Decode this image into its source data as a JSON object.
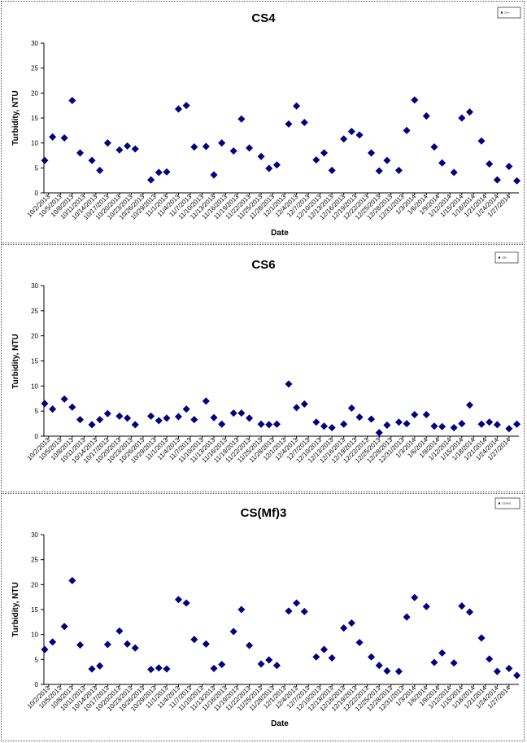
{
  "x_dates": [
    "10/2/2013",
    "10/5/2013",
    "10/8/2013",
    "10/11/2013",
    "10/14/2013",
    "10/17/2013",
    "10/20/2013",
    "10/23/2013",
    "10/26/2013",
    "10/29/2013",
    "11/1/2013",
    "11/4/2013",
    "11/7/2013",
    "11/10/2013",
    "11/13/2013",
    "11/16/2013",
    "11/19/2013",
    "11/22/2013",
    "11/25/2013",
    "11/28/2013",
    "12/1/2013",
    "12/4/2013",
    "12/7/2013",
    "12/10/2013",
    "12/13/2013",
    "12/16/2013",
    "12/19/2013",
    "12/22/2013",
    "12/25/2013",
    "12/28/2013",
    "12/31/2013",
    "1/3/2014",
    "1/6/2014",
    "1/9/2014",
    "1/12/2014",
    "1/15/2014",
    "1/18/2014",
    "1/21/2014",
    "1/24/2014",
    "1/27/2014"
  ],
  "chart_data": [
    {
      "type": "scatter",
      "title": "CS4",
      "xlabel": "Date",
      "ylabel": "Turbidity, NTU",
      "ylim": [
        0,
        30
      ],
      "yticks": [
        0,
        5,
        10,
        15,
        20,
        25,
        30
      ],
      "grid": false,
      "legend": {
        "placement": "top-right",
        "entries": [
          "CS4"
        ]
      },
      "marker_color": "#000080",
      "series": [
        {
          "name": "CS4",
          "points": [
            [
              "10/1/2013",
              6.5
            ],
            [
              "10/3/2013",
              11.2
            ],
            [
              "10/6/2013",
              11.0
            ],
            [
              "10/8/2013",
              18.5
            ],
            [
              "10/10/2013",
              8.0
            ],
            [
              "10/13/2013",
              6.5
            ],
            [
              "10/15/2013",
              4.5
            ],
            [
              "10/17/2013",
              10.0
            ],
            [
              "10/20/2013",
              8.6
            ],
            [
              "10/22/2013",
              9.4
            ],
            [
              "10/24/2013",
              8.8
            ],
            [
              "10/28/2013",
              2.6
            ],
            [
              "10/30/2013",
              4.1
            ],
            [
              "11/1/2013",
              4.2
            ],
            [
              "11/4/2013",
              16.8
            ],
            [
              "11/6/2013",
              17.5
            ],
            [
              "11/8/2013",
              9.2
            ],
            [
              "11/11/2013",
              9.3
            ],
            [
              "11/13/2013",
              3.6
            ],
            [
              "11/15/2013",
              10.0
            ],
            [
              "11/18/2013",
              8.4
            ],
            [
              "11/20/2013",
              14.8
            ],
            [
              "11/22/2013",
              9.0
            ],
            [
              "11/25/2013",
              7.3
            ],
            [
              "11/27/2013",
              4.9
            ],
            [
              "11/29/2013",
              5.6
            ],
            [
              "12/2/2013",
              13.8
            ],
            [
              "12/4/2013",
              17.4
            ],
            [
              "12/6/2013",
              14.1
            ],
            [
              "12/9/2013",
              6.6
            ],
            [
              "12/11/2013",
              8.0
            ],
            [
              "12/13/2013",
              4.5
            ],
            [
              "12/16/2013",
              10.8
            ],
            [
              "12/18/2013",
              12.3
            ],
            [
              "12/20/2013",
              11.6
            ],
            [
              "12/23/2013",
              8.0
            ],
            [
              "12/25/2013",
              4.4
            ],
            [
              "12/27/2013",
              6.5
            ],
            [
              "12/30/2013",
              4.5
            ],
            [
              "1/1/2014",
              12.5
            ],
            [
              "1/3/2014",
              18.6
            ],
            [
              "1/6/2014",
              15.4
            ],
            [
              "1/8/2014",
              9.2
            ],
            [
              "1/10/2014",
              6.0
            ],
            [
              "1/13/2014",
              4.1
            ],
            [
              "1/15/2014",
              15.0
            ],
            [
              "1/17/2014",
              16.2
            ],
            [
              "1/20/2014",
              10.4
            ],
            [
              "1/22/2014",
              5.8
            ],
            [
              "1/24/2014",
              2.6
            ],
            [
              "1/27/2014",
              5.3
            ],
            [
              "1/29/2014",
              2.4
            ]
          ]
        }
      ]
    },
    {
      "type": "scatter",
      "title": "CS6",
      "xlabel": "",
      "ylabel": "Turbidity, NTU",
      "ylim": [
        0,
        30
      ],
      "yticks": [
        0,
        5,
        10,
        15,
        20,
        25,
        30
      ],
      "grid": false,
      "legend": {
        "placement": "top-right",
        "entries": [
          "CS6"
        ]
      },
      "marker_color": "#000080",
      "series": [
        {
          "name": "CS6",
          "points": [
            [
              "10/1/2013",
              6.5
            ],
            [
              "10/3/2013",
              5.4
            ],
            [
              "10/6/2013",
              7.4
            ],
            [
              "10/8/2013",
              5.8
            ],
            [
              "10/10/2013",
              3.3
            ],
            [
              "10/13/2013",
              2.3
            ],
            [
              "10/15/2013",
              3.3
            ],
            [
              "10/17/2013",
              4.5
            ],
            [
              "10/20/2013",
              4.0
            ],
            [
              "10/22/2013",
              3.6
            ],
            [
              "10/24/2013",
              2.3
            ],
            [
              "10/28/2013",
              4.0
            ],
            [
              "10/30/2013",
              3.1
            ],
            [
              "11/1/2013",
              3.6
            ],
            [
              "11/4/2013",
              3.9
            ],
            [
              "11/6/2013",
              5.4
            ],
            [
              "11/8/2013",
              3.3
            ],
            [
              "11/11/2013",
              7.0
            ],
            [
              "11/13/2013",
              3.7
            ],
            [
              "11/15/2013",
              2.4
            ],
            [
              "11/18/2013",
              4.6
            ],
            [
              "11/20/2013",
              4.6
            ],
            [
              "11/22/2013",
              3.6
            ],
            [
              "11/25/2013",
              2.4
            ],
            [
              "11/27/2013",
              2.3
            ],
            [
              "11/29/2013",
              2.4
            ],
            [
              "12/2/2013",
              10.4
            ],
            [
              "12/4/2013",
              5.7
            ],
            [
              "12/6/2013",
              6.4
            ],
            [
              "12/9/2013",
              2.8
            ],
            [
              "12/11/2013",
              2.0
            ],
            [
              "12/13/2013",
              1.7
            ],
            [
              "12/16/2013",
              2.4
            ],
            [
              "12/18/2013",
              5.6
            ],
            [
              "12/20/2013",
              3.8
            ],
            [
              "12/23/2013",
              3.4
            ],
            [
              "12/25/2013",
              0.7
            ],
            [
              "12/27/2013",
              2.2
            ],
            [
              "12/30/2013",
              2.8
            ],
            [
              "1/1/2014",
              2.5
            ],
            [
              "1/3/2014",
              4.3
            ],
            [
              "1/6/2014",
              4.3
            ],
            [
              "1/8/2014",
              2.0
            ],
            [
              "1/10/2014",
              1.9
            ],
            [
              "1/13/2014",
              1.7
            ],
            [
              "1/15/2014",
              2.5
            ],
            [
              "1/17/2014",
              6.2
            ],
            [
              "1/20/2014",
              2.4
            ],
            [
              "1/22/2014",
              2.8
            ],
            [
              "1/24/2014",
              2.3
            ],
            [
              "1/27/2014",
              1.5
            ],
            [
              "1/29/2014",
              2.4
            ]
          ]
        }
      ]
    },
    {
      "type": "scatter",
      "title": "CS(Mf)3",
      "xlabel": "Date",
      "ylabel": "Turbidity, NTU",
      "ylim": [
        0,
        30
      ],
      "yticks": [
        0,
        5,
        10,
        15,
        20,
        25,
        30
      ],
      "grid": false,
      "legend": {
        "placement": "top-right",
        "entries": [
          "CS(Mf)3"
        ]
      },
      "marker_color": "#000080",
      "series": [
        {
          "name": "CS(Mf)3",
          "points": [
            [
              "10/1/2013",
              7.0
            ],
            [
              "10/3/2013",
              8.5
            ],
            [
              "10/6/2013",
              11.6
            ],
            [
              "10/8/2013",
              20.8
            ],
            [
              "10/10/2013",
              7.9
            ],
            [
              "10/13/2013",
              3.1
            ],
            [
              "10/15/2013",
              3.7
            ],
            [
              "10/17/2013",
              8.0
            ],
            [
              "10/20/2013",
              10.7
            ],
            [
              "10/22/2013",
              8.1
            ],
            [
              "10/24/2013",
              7.3
            ],
            [
              "10/28/2013",
              3.0
            ],
            [
              "10/30/2013",
              3.3
            ],
            [
              "11/1/2013",
              3.1
            ],
            [
              "11/4/2013",
              17.0
            ],
            [
              "11/6/2013",
              16.3
            ],
            [
              "11/8/2013",
              9.0
            ],
            [
              "11/11/2013",
              8.1
            ],
            [
              "11/13/2013",
              3.2
            ],
            [
              "11/15/2013",
              4.0
            ],
            [
              "11/18/2013",
              10.6
            ],
            [
              "11/20/2013",
              15.0
            ],
            [
              "11/22/2013",
              7.8
            ],
            [
              "11/25/2013",
              4.1
            ],
            [
              "11/27/2013",
              4.9
            ],
            [
              "11/29/2013",
              3.8
            ],
            [
              "12/2/2013",
              14.7
            ],
            [
              "12/4/2013",
              16.3
            ],
            [
              "12/6/2013",
              14.6
            ],
            [
              "12/9/2013",
              5.5
            ],
            [
              "12/11/2013",
              7.0
            ],
            [
              "12/13/2013",
              5.3
            ],
            [
              "12/16/2013",
              11.3
            ],
            [
              "12/18/2013",
              12.3
            ],
            [
              "12/20/2013",
              8.4
            ],
            [
              "12/23/2013",
              5.5
            ],
            [
              "12/25/2013",
              3.8
            ],
            [
              "12/27/2013",
              2.7
            ],
            [
              "12/30/2013",
              2.6
            ],
            [
              "1/1/2014",
              13.5
            ],
            [
              "1/3/2014",
              17.4
            ],
            [
              "1/6/2014",
              15.6
            ],
            [
              "1/8/2014",
              4.4
            ],
            [
              "1/10/2014",
              6.3
            ],
            [
              "1/13/2014",
              4.3
            ],
            [
              "1/15/2014",
              15.7
            ],
            [
              "1/17/2014",
              14.5
            ],
            [
              "1/20/2014",
              9.3
            ],
            [
              "1/22/2014",
              5.1
            ],
            [
              "1/24/2014",
              2.6
            ],
            [
              "1/27/2014",
              3.2
            ],
            [
              "1/29/2014",
              1.8
            ]
          ]
        }
      ]
    }
  ]
}
